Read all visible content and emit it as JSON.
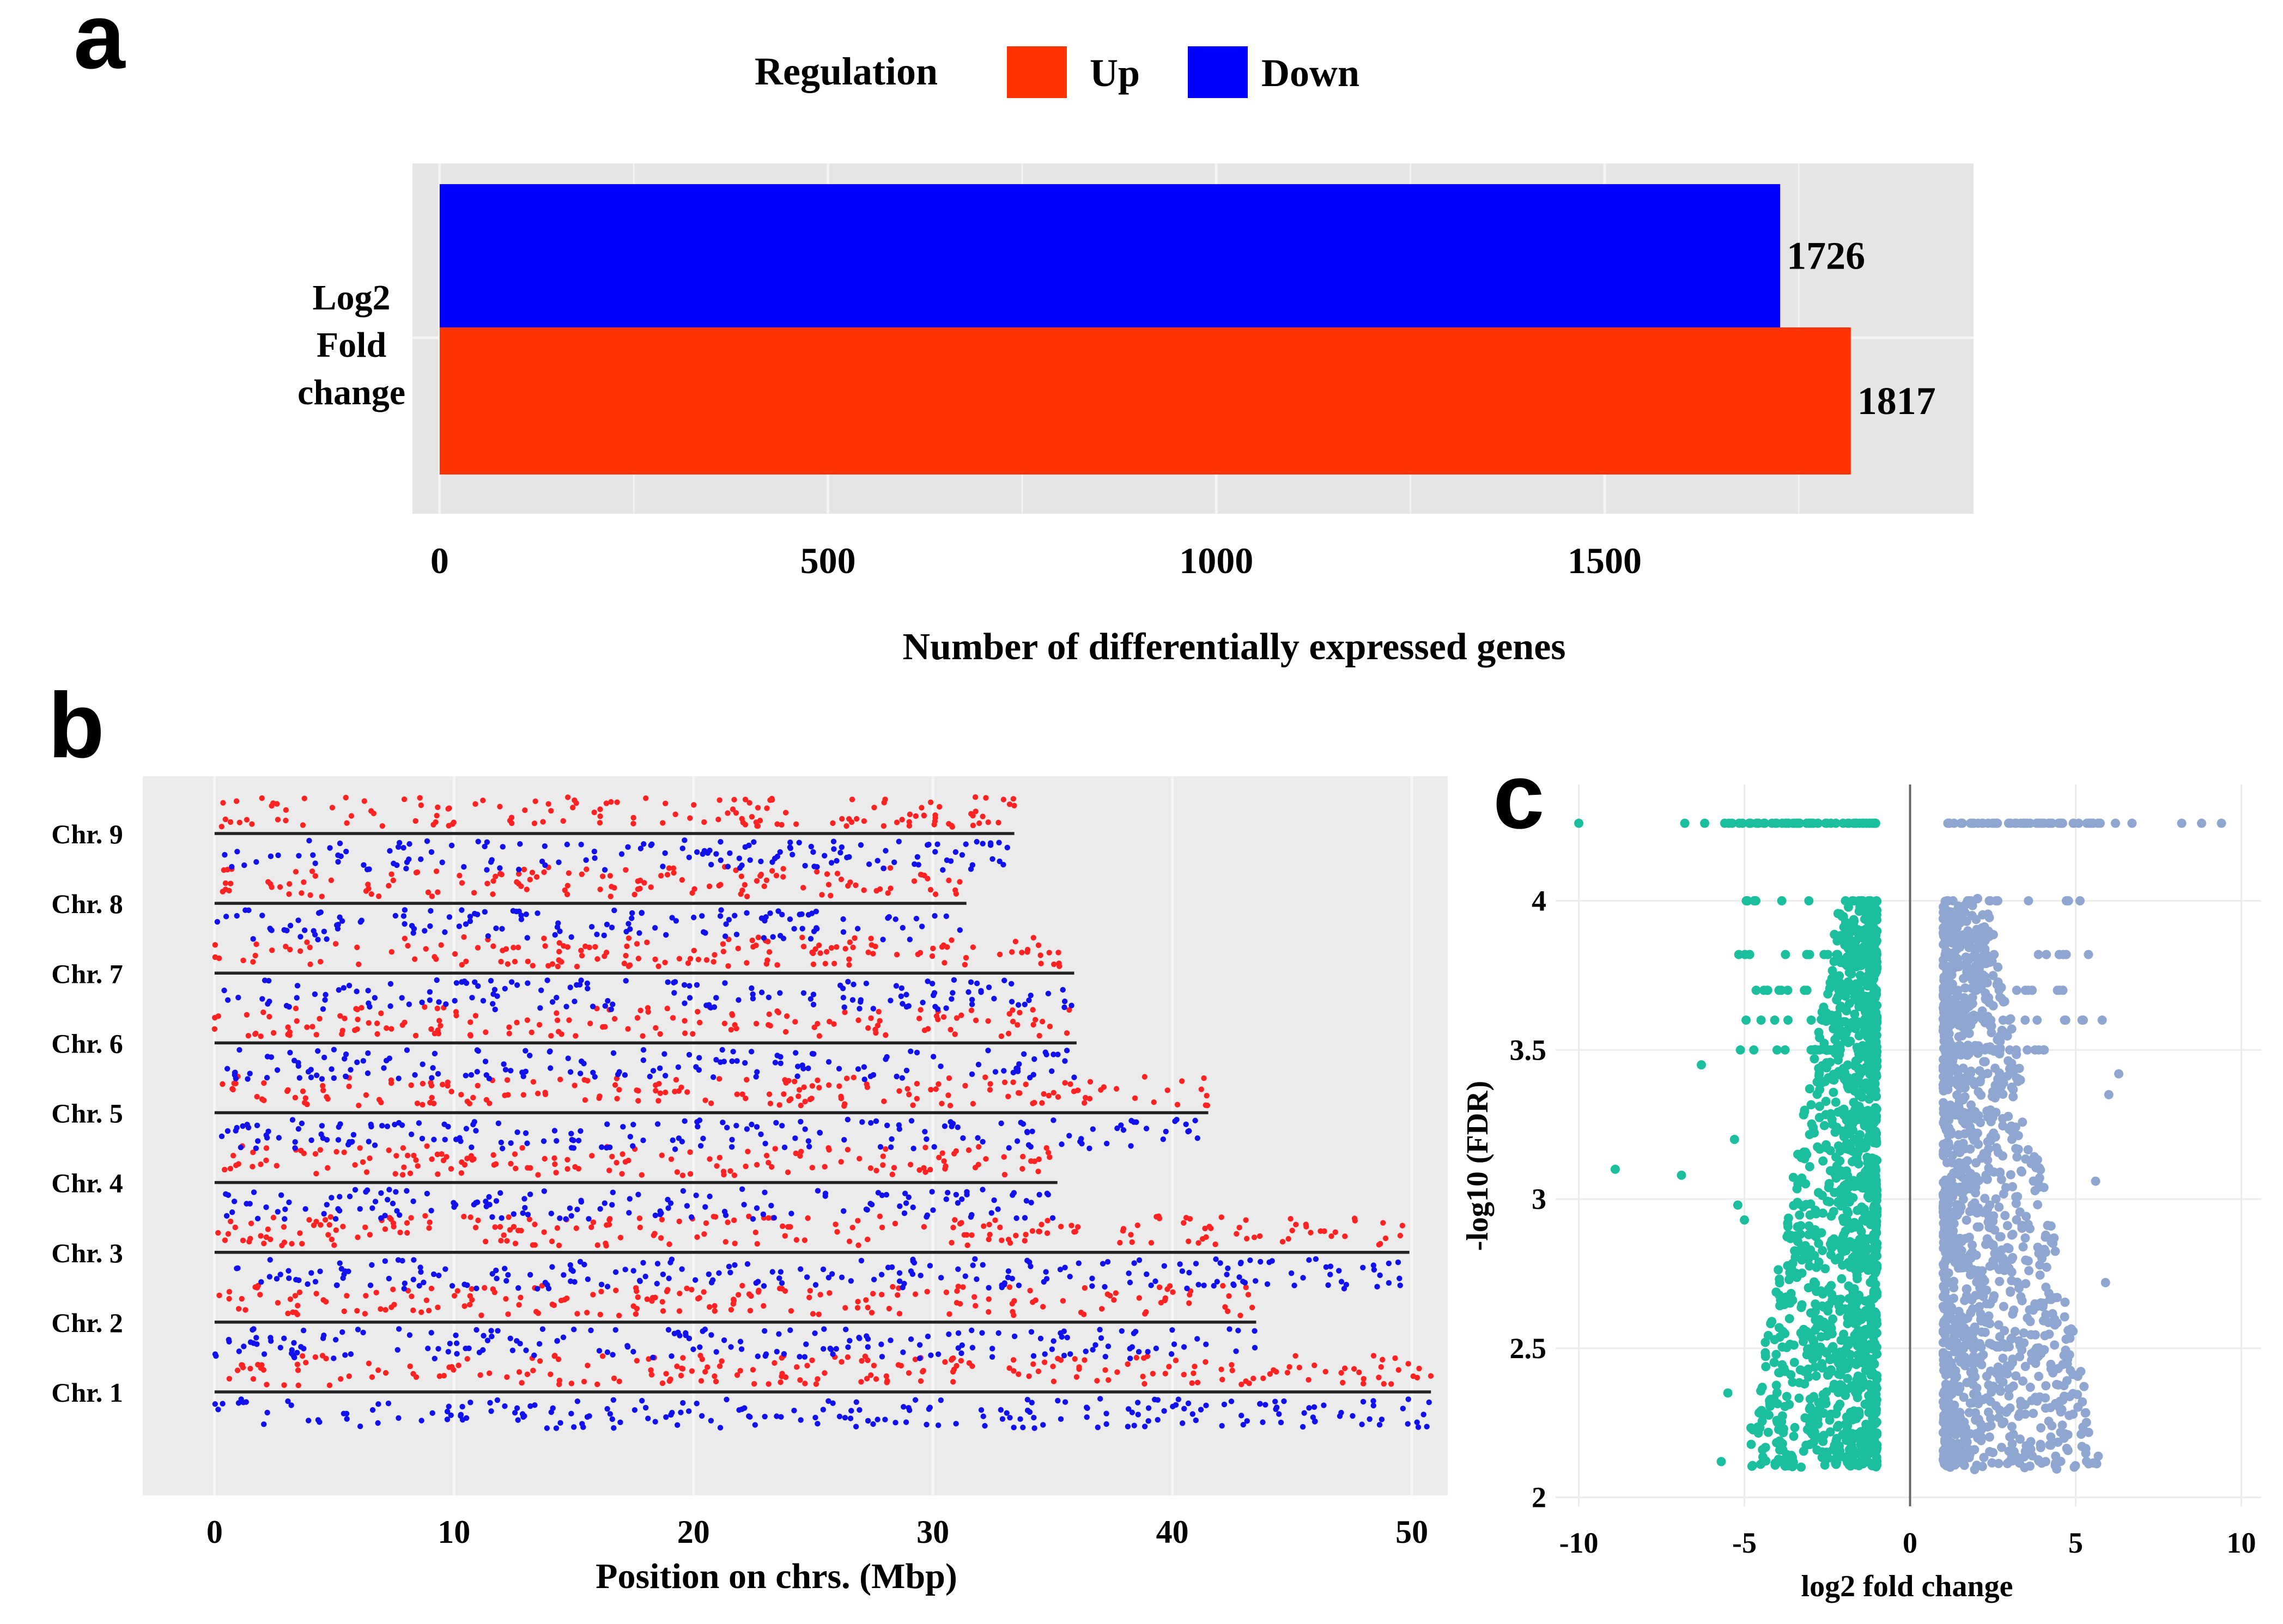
{
  "panels": {
    "a": "a",
    "b": "b",
    "c": "c"
  },
  "colors": {
    "up": "#ff3300",
    "down": "#0000ff",
    "panel_bg": "#e5e5e5",
    "grid": "#f4f4f4",
    "volcano_down": "#1bbf9e",
    "volcano_up": "#8fa6d0",
    "chrom_red": "#ff2222",
    "chrom_blue": "#1111ee"
  },
  "chart_data": [
    {
      "id": "a",
      "type": "bar",
      "orientation": "horizontal",
      "legend": {
        "title": "Regulation",
        "entries": [
          "Up",
          "Down"
        ],
        "placement": "top"
      },
      "ylabel_lines": [
        "Log2",
        "Fold",
        "change"
      ],
      "xlabel": "Number of differentially expressed genes",
      "xticks": [
        0,
        500,
        1000,
        1500
      ],
      "xlim": [
        -35,
        1975
      ],
      "series": [
        {
          "name": "Down",
          "value": 1726,
          "label": "1726"
        },
        {
          "name": "Up",
          "value": 1817,
          "label": "1817"
        }
      ]
    },
    {
      "id": "b",
      "type": "scatter",
      "title": "",
      "xlabel": "Position on chrs. (Mbp)",
      "xticks": [
        0,
        10,
        20,
        30,
        40,
        50
      ],
      "xlim": [
        -3,
        51.5
      ],
      "chromosomes": [
        {
          "label": "Chr. 1",
          "length": 50.8,
          "seed": 11
        },
        {
          "label": "Chr. 2",
          "length": 43.5,
          "seed": 23
        },
        {
          "label": "Chr. 3",
          "length": 49.9,
          "seed": 37
        },
        {
          "label": "Chr. 4",
          "length": 35.2,
          "seed": 41
        },
        {
          "label": "Chr. 5",
          "length": 41.5,
          "seed": 53
        },
        {
          "label": "Chr. 6",
          "length": 36.0,
          "seed": 67
        },
        {
          "label": "Chr. 7",
          "length": 35.9,
          "seed": 71
        },
        {
          "label": "Chr. 8",
          "length": 31.4,
          "seed": 83
        },
        {
          "label": "Chr. 9",
          "length": 33.4,
          "seed": 97
        }
      ],
      "series": [
        {
          "name": "Up",
          "side": "above"
        },
        {
          "name": "Down",
          "side": "below"
        }
      ]
    },
    {
      "id": "c",
      "type": "scatter",
      "title": "",
      "xlabel": "log2 fold change",
      "ylabel": "-log10 (FDR)",
      "xticks": [
        -10,
        -5,
        0,
        5,
        10
      ],
      "yticks": [
        2,
        2.5,
        3,
        3.5,
        4
      ],
      "xlim": [
        -10.7,
        10.6
      ],
      "ylim": [
        1.97,
        4.39
      ],
      "saturation_y": 4.26,
      "series": [
        {
          "name": "Down",
          "x_range": [
            -10.0,
            -1.0
          ]
        },
        {
          "name": "Up",
          "x_range": [
            1.0,
            9.4
          ]
        }
      ]
    }
  ]
}
